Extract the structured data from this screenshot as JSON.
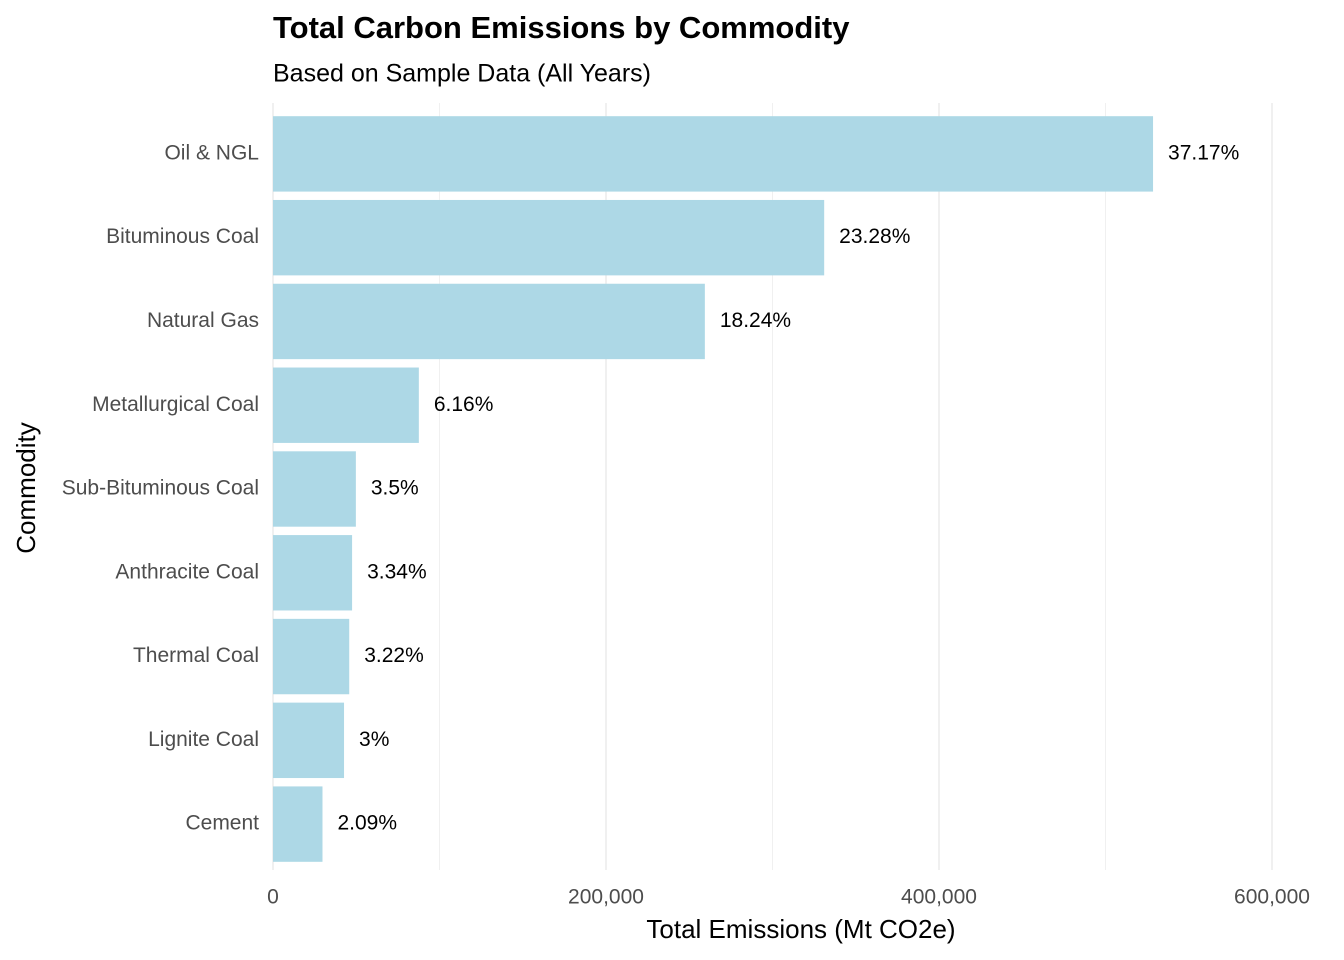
{
  "chart_data": {
    "type": "bar",
    "orientation": "horizontal",
    "title": "Total Carbon Emissions by Commodity",
    "subtitle": "Based on Sample Data (All Years)",
    "x_label": "Total Emissions (Mt CO2e)",
    "y_label": "Commodity",
    "categories": [
      "Oil & NGL",
      "Bituminous Coal",
      "Natural Gas",
      "Metallurgical Coal",
      "Sub-Bituminous Coal",
      "Anthracite Coal",
      "Thermal Coal",
      "Lignite Coal",
      "Cement"
    ],
    "values": [
      528557,
      331042,
      259373,
      87595,
      49770,
      47495,
      45788,
      42660,
      29720
    ],
    "bar_labels": [
      "37.17%",
      "23.28%",
      "18.24%",
      "6.16%",
      "3.5%",
      "3.34%",
      "3.22%",
      "3%",
      "2.09%"
    ],
    "color": "#add8e6",
    "xlim": [
      0,
      600000
    ],
    "xticks": [
      0,
      {
        "value": 200000,
        "label": "200,000"
      },
      {
        "value": 400000,
        "label": "400,000"
      },
      {
        "value": 600000,
        "label": "600,000"
      }
    ],
    "minor_xticks": [
      100000,
      300000,
      500000
    ],
    "grid": true
  }
}
